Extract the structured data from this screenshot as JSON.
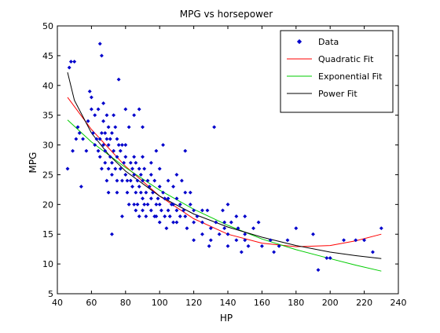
{
  "chart_data": {
    "type": "scatter",
    "title": "MPG vs horsepower",
    "xlabel": "HP",
    "ylabel": "MPG",
    "xlim": [
      40,
      240
    ],
    "ylim": [
      5,
      50
    ],
    "xticks": [
      40,
      60,
      80,
      100,
      120,
      140,
      160,
      180,
      200,
      220,
      240
    ],
    "yticks": [
      5,
      10,
      15,
      20,
      25,
      30,
      35,
      40,
      45,
      50
    ],
    "grid": false,
    "legend_position": "top-right",
    "colors": {
      "data": "#0000cc",
      "quadratic": "#ff0000",
      "exponential": "#00cc00",
      "power": "#000000"
    },
    "series": [
      {
        "name": "Data",
        "kind": "points",
        "points": [
          [
            46,
            26
          ],
          [
            47,
            43
          ],
          [
            48,
            44
          ],
          [
            49,
            29
          ],
          [
            50,
            44
          ],
          [
            51,
            31
          ],
          [
            52,
            33
          ],
          [
            53,
            32
          ],
          [
            54,
            23
          ],
          [
            55,
            31
          ],
          [
            57,
            29
          ],
          [
            58,
            34
          ],
          [
            59,
            39
          ],
          [
            60,
            36
          ],
          [
            60,
            38
          ],
          [
            61,
            32
          ],
          [
            62,
            35
          ],
          [
            62,
            30
          ],
          [
            63,
            31
          ],
          [
            64,
            29
          ],
          [
            64,
            36
          ],
          [
            65,
            31
          ],
          [
            65,
            28
          ],
          [
            65,
            47
          ],
          [
            66,
            45
          ],
          [
            66,
            32
          ],
          [
            66,
            26
          ],
          [
            67,
            34
          ],
          [
            67,
            37
          ],
          [
            67,
            30
          ],
          [
            68,
            27
          ],
          [
            68,
            32
          ],
          [
            68,
            29
          ],
          [
            69,
            31
          ],
          [
            69,
            24
          ],
          [
            69,
            35
          ],
          [
            70,
            30
          ],
          [
            70,
            33
          ],
          [
            70,
            26
          ],
          [
            70,
            22
          ],
          [
            71,
            31
          ],
          [
            71,
            28
          ],
          [
            72,
            32
          ],
          [
            72,
            27
          ],
          [
            72,
            25
          ],
          [
            72,
            15
          ],
          [
            73,
            29
          ],
          [
            73,
            35
          ],
          [
            74,
            26
          ],
          [
            74,
            33
          ],
          [
            75,
            31
          ],
          [
            75,
            24
          ],
          [
            75,
            28
          ],
          [
            75,
            22
          ],
          [
            76,
            41
          ],
          [
            76,
            30
          ],
          [
            77,
            29
          ],
          [
            77,
            26
          ],
          [
            78,
            18
          ],
          [
            78,
            30
          ],
          [
            78,
            24
          ],
          [
            79,
            27
          ],
          [
            80,
            36
          ],
          [
            80,
            25
          ],
          [
            80,
            30
          ],
          [
            80,
            28
          ],
          [
            81,
            24
          ],
          [
            81,
            22
          ],
          [
            82,
            33
          ],
          [
            82,
            20
          ],
          [
            83,
            27
          ],
          [
            83,
            24
          ],
          [
            84,
            26
          ],
          [
            84,
            23
          ],
          [
            85,
            35
          ],
          [
            85,
            20
          ],
          [
            85,
            28
          ],
          [
            85,
            25
          ],
          [
            86,
            22
          ],
          [
            86,
            19
          ],
          [
            86,
            27
          ],
          [
            87,
            24
          ],
          [
            87,
            20
          ],
          [
            88,
            26
          ],
          [
            88,
            23
          ],
          [
            88,
            18
          ],
          [
            88,
            36
          ],
          [
            89,
            22
          ],
          [
            89,
            25
          ],
          [
            90,
            28
          ],
          [
            90,
            24
          ],
          [
            90,
            21
          ],
          [
            90,
            19
          ],
          [
            90,
            33
          ],
          [
            91,
            20
          ],
          [
            91,
            26
          ],
          [
            92,
            22
          ],
          [
            92,
            18
          ],
          [
            93,
            24
          ],
          [
            93,
            20
          ],
          [
            94,
            23
          ],
          [
            95,
            25
          ],
          [
            95,
            21
          ],
          [
            95,
            19
          ],
          [
            95,
            27
          ],
          [
            96,
            22
          ],
          [
            97,
            18
          ],
          [
            97,
            24
          ],
          [
            98,
            20
          ],
          [
            98,
            29
          ],
          [
            99,
            21
          ],
          [
            100,
            23
          ],
          [
            100,
            20
          ],
          [
            100,
            17
          ],
          [
            100,
            26
          ],
          [
            101,
            19
          ],
          [
            102,
            22
          ],
          [
            102,
            30
          ],
          [
            103,
            18
          ],
          [
            103,
            21
          ],
          [
            104,
            16
          ],
          [
            105,
            21
          ],
          [
            105,
            19
          ],
          [
            105,
            24
          ],
          [
            106,
            18
          ],
          [
            107,
            20
          ],
          [
            108,
            23
          ],
          [
            108,
            17
          ],
          [
            110,
            21
          ],
          [
            110,
            19
          ],
          [
            110,
            17
          ],
          [
            110,
            25
          ],
          [
            112,
            20
          ],
          [
            112,
            18
          ],
          [
            113,
            24
          ],
          [
            114,
            19
          ],
          [
            115,
            18
          ],
          [
            115,
            22
          ],
          [
            115,
            29
          ],
          [
            116,
            16
          ],
          [
            118,
            20
          ],
          [
            120,
            19
          ],
          [
            120,
            17
          ],
          [
            120,
            14
          ],
          [
            122,
            18
          ],
          [
            125,
            17
          ],
          [
            125,
            15
          ],
          [
            128,
            19
          ],
          [
            129,
            13
          ],
          [
            130,
            16
          ],
          [
            130,
            14
          ],
          [
            132,
            33
          ],
          [
            133,
            17
          ],
          [
            135,
            15
          ],
          [
            137,
            19
          ],
          [
            138,
            16
          ],
          [
            140,
            15
          ],
          [
            140,
            20
          ],
          [
            140,
            13
          ],
          [
            142,
            17
          ],
          [
            145,
            18
          ],
          [
            145,
            14
          ],
          [
            146,
            16
          ],
          [
            148,
            12
          ],
          [
            150,
            15
          ],
          [
            150,
            14
          ],
          [
            152,
            13
          ],
          [
            155,
            16
          ],
          [
            158,
            17
          ],
          [
            160,
            13
          ],
          [
            165,
            14
          ],
          [
            167,
            12
          ],
          [
            170,
            13
          ],
          [
            175,
            14
          ],
          [
            180,
            16
          ],
          [
            190,
            15
          ],
          [
            193,
            9
          ],
          [
            198,
            11
          ],
          [
            200,
            11
          ],
          [
            208,
            14
          ],
          [
            215,
            14
          ],
          [
            220,
            14
          ],
          [
            225,
            12
          ],
          [
            230,
            16
          ],
          [
            150,
            18
          ],
          [
            138,
            17
          ],
          [
            125,
            19
          ],
          [
            118,
            22
          ],
          [
            108,
            20
          ],
          [
            98,
            18
          ]
        ]
      },
      {
        "name": "Quadratic Fit",
        "kind": "line",
        "points": [
          [
            46,
            38
          ],
          [
            60,
            32.6
          ],
          [
            80,
            26.4
          ],
          [
            100,
            21.4
          ],
          [
            120,
            17.6
          ],
          [
            140,
            15
          ],
          [
            160,
            13.5
          ],
          [
            180,
            12.9
          ],
          [
            200,
            13.1
          ],
          [
            215,
            13.9
          ],
          [
            230,
            15
          ]
        ]
      },
      {
        "name": "Exponential Fit",
        "kind": "line",
        "points": [
          [
            46,
            34.2
          ],
          [
            60,
            30.5
          ],
          [
            80,
            26.2
          ],
          [
            100,
            22.4
          ],
          [
            120,
            19.2
          ],
          [
            140,
            16.5
          ],
          [
            160,
            14.2
          ],
          [
            180,
            12.4
          ],
          [
            200,
            10.9
          ],
          [
            215,
            9.8
          ],
          [
            230,
            8.8
          ]
        ]
      },
      {
        "name": "Power Fit",
        "kind": "line",
        "points": [
          [
            46,
            42.2
          ],
          [
            50,
            37.5
          ],
          [
            60,
            32
          ],
          [
            70,
            28.4
          ],
          [
            80,
            25.6
          ],
          [
            100,
            21.4
          ],
          [
            120,
            18.4
          ],
          [
            140,
            16.2
          ],
          [
            160,
            14.5
          ],
          [
            180,
            13.1
          ],
          [
            200,
            12
          ],
          [
            215,
            11.4
          ],
          [
            230,
            10.9
          ]
        ]
      }
    ]
  }
}
